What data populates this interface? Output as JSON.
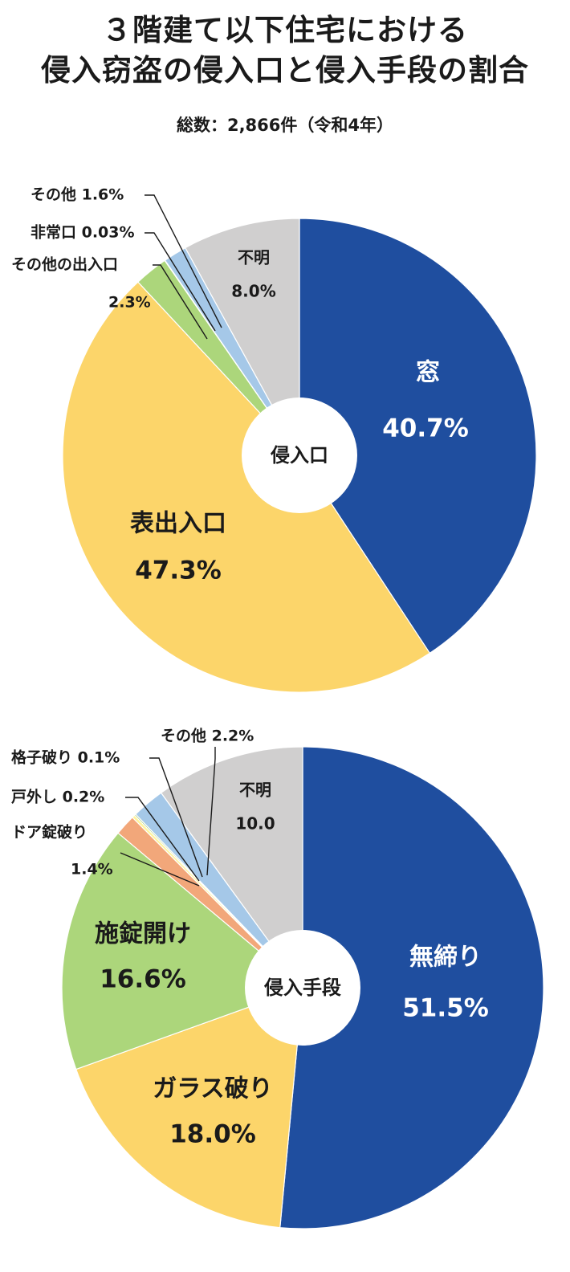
{
  "title_line1": "３階建て以下住宅における",
  "title_line2": "侵入窃盗の侵入口と侵入手段の割合",
  "subtitle": "総数：2,866件（令和4年）",
  "colors": {
    "blue": "#1f4e9f",
    "yellow": "#fcd56a",
    "green": "#acd67b",
    "light_blue": "#a5c8e8",
    "gray": "#d0cfcf",
    "orange": "#f2a77a",
    "pale_yellow": "#fff39a",
    "leader": "#1a1a1a"
  },
  "chart_data": [
    {
      "type": "pie",
      "title": "侵入口",
      "center_label": "侵入口",
      "slices": [
        {
          "name": "窓",
          "value": 40.7,
          "pct_label": "40.7%",
          "color": "#1f4e9f"
        },
        {
          "name": "表出入口",
          "value": 47.3,
          "pct_label": "47.3%",
          "color": "#fcd56a"
        },
        {
          "name": "その他の出入口",
          "value": 2.3,
          "pct_label": "2.3%",
          "color": "#acd67b"
        },
        {
          "name": "非常口",
          "value": 0.03,
          "pct_label": "0.03%",
          "color": "#fff39a"
        },
        {
          "name": "その他",
          "value": 1.6,
          "pct_label": "1.6%",
          "color": "#a5c8e8"
        },
        {
          "name": "不明",
          "value": 8.0,
          "pct_label": "8.0%",
          "color": "#d0cfcf"
        }
      ]
    },
    {
      "type": "pie",
      "title": "侵入手段",
      "center_label": "侵入手段",
      "slices": [
        {
          "name": "無締り",
          "value": 51.5,
          "pct_label": "51.5%",
          "color": "#1f4e9f"
        },
        {
          "name": "ガラス破り",
          "value": 18.0,
          "pct_label": "18.0%",
          "color": "#fcd56a"
        },
        {
          "name": "施錠開け",
          "value": 16.6,
          "pct_label": "16.6%",
          "color": "#acd67b"
        },
        {
          "name": "ドア錠破り",
          "value": 1.4,
          "pct_label": "1.4%",
          "color": "#f2a77a"
        },
        {
          "name": "戸外し",
          "value": 0.2,
          "pct_label": "0.2%",
          "color": "#fff39a"
        },
        {
          "name": "格子破り",
          "value": 0.1,
          "pct_label": "0.1%",
          "color": "#8fbf6a"
        },
        {
          "name": "その他",
          "value": 2.2,
          "pct_label": "2.2%",
          "color": "#a5c8e8"
        },
        {
          "name": "不明",
          "value": 10.0,
          "pct_label": "10.0",
          "color": "#d0cfcf"
        }
      ]
    }
  ]
}
